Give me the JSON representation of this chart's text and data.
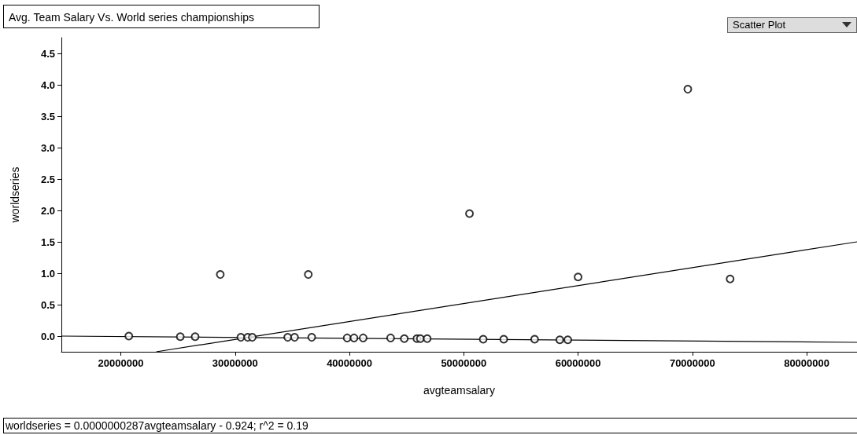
{
  "chart_data": {
    "type": "scatter",
    "title": "Avg. Team Salary Vs. World series championships",
    "xlabel": "avgteamsalary",
    "ylabel": "worldseries",
    "annotations": [
      "worldseries = 0.0000000287avgteamsalary - 0.924; r^2 = 0.19",
      "Scatter Plot"
    ],
    "xlim": [
      14800000,
      84400000
    ],
    "xticks": [
      20000000,
      30000000,
      40000000,
      50000000,
      60000000,
      70000000,
      80000000
    ],
    "ylim": [
      -0.25,
      4.75
    ],
    "yticks": [
      {
        "value": 0,
        "label": "0.0"
      },
      0.5,
      {
        "value": 1,
        "label": "1.0"
      },
      1.5,
      {
        "value": 2,
        "label": "2.0"
      },
      2.5,
      {
        "value": 3,
        "label": "3.0"
      },
      3.5,
      {
        "value": 4,
        "label": "4.0"
      },
      4.5
    ],
    "grid": false,
    "marker": "circle",
    "series": [
      {
        "color": "#000000",
        "x": [
          20700000,
          25200000,
          26500000,
          30500000,
          31100000,
          31500000,
          34600000,
          35200000,
          36700000,
          39800000,
          40400000,
          41200000,
          43600000,
          44800000,
          45900000,
          46200000,
          46800000,
          51700000,
          53500000,
          56200000,
          58400000,
          59100000,
          28700000,
          36400000,
          50500000,
          60000000,
          69600000,
          73300000
        ],
        "values": [
          0.0,
          -0.01,
          -0.01,
          -0.02,
          -0.02,
          -0.02,
          -0.02,
          -0.02,
          -0.02,
          -0.03,
          -0.03,
          -0.03,
          -0.03,
          -0.04,
          -0.04,
          -0.04,
          -0.04,
          -0.05,
          -0.05,
          -0.05,
          -0.06,
          -0.06,
          0.98,
          0.98,
          1.95,
          0.94,
          3.93,
          0.91
        ]
      },
      {
        "type": "line",
        "color": "#000000",
        "marker": "none",
        "line_style": "solid",
        "x": [
          23100000,
          84400000
        ],
        "values": [
          -0.25,
          1.5
        ]
      },
      {
        "type": "line",
        "color": "#000000",
        "marker": "none",
        "line_style": "solid",
        "x": [
          14800000,
          84400000
        ],
        "values": [
          0.0,
          -0.1
        ]
      }
    ]
  }
}
